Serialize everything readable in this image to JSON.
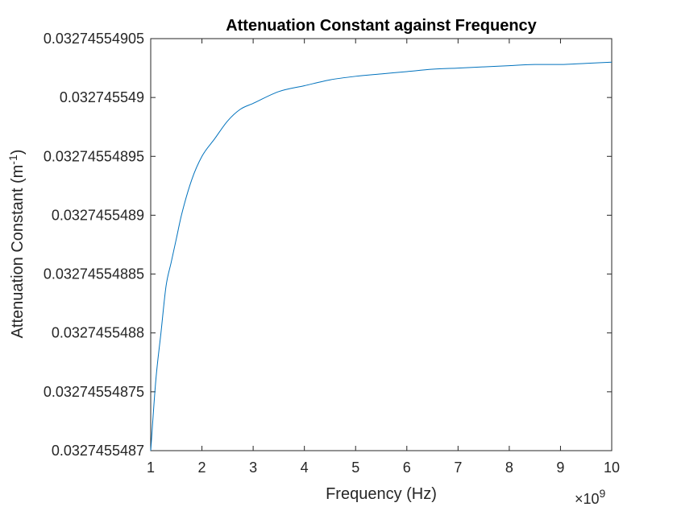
{
  "chart_data": {
    "type": "line",
    "title": "Attenuation Constant against Frequency",
    "xlabel": "Frequency (Hz)",
    "ylabel": "Attenuation Constant (m^-1)",
    "x_exponent_label": "×10",
    "x_exponent_power": "9",
    "xlim": [
      1000000000.0,
      10000000000.0
    ],
    "ylim": [
      0.0327455487,
      0.03274554905
    ],
    "x_ticks": [
      {
        "value": 1000000000.0,
        "label": "1"
      },
      {
        "value": 2000000000.0,
        "label": "2"
      },
      {
        "value": 3000000000.0,
        "label": "3"
      },
      {
        "value": 4000000000.0,
        "label": "4"
      },
      {
        "value": 5000000000.0,
        "label": "5"
      },
      {
        "value": 6000000000.0,
        "label": "6"
      },
      {
        "value": 7000000000.0,
        "label": "7"
      },
      {
        "value": 8000000000.0,
        "label": "8"
      },
      {
        "value": 9000000000.0,
        "label": "9"
      },
      {
        "value": 10000000000.0,
        "label": "10"
      }
    ],
    "y_ticks": [
      {
        "value": 0.0327455487,
        "label": "0.0327455487"
      },
      {
        "value": 0.03274554875,
        "label": "0.03274554875"
      },
      {
        "value": 0.0327455488,
        "label": "0.0327455488"
      },
      {
        "value": 0.03274554885,
        "label": "0.03274554885"
      },
      {
        "value": 0.0327455489,
        "label": "0.0327455489"
      },
      {
        "value": 0.03274554895,
        "label": "0.03274554895"
      },
      {
        "value": 0.032745549,
        "label": "0.032745549"
      },
      {
        "value": 0.03274554905,
        "label": "0.03274554905"
      }
    ],
    "grid": false,
    "line_color": "#0072bd",
    "series": [
      {
        "x": [
          1000000000.0,
          1100000000.0,
          1200000000.0,
          1300000000.0,
          1400000000.0,
          1500000000.0,
          1600000000.0,
          1800000000.0,
          2000000000.0,
          2250000000.0,
          2500000000.0,
          2750000000.0,
          3000000000.0,
          3500000000.0,
          4000000000.0,
          4500000000.0,
          5000000000.0,
          5500000000.0,
          6000000000.0,
          6500000000.0,
          7000000000.0,
          7500000000.0,
          8000000000.0,
          8500000000.0,
          9000000000.0,
          9500000000.0,
          10000000000.0
        ],
        "values": [
          0.0327455487,
          0.03274554876,
          0.0327455488,
          0.03274554884,
          0.03274554886,
          0.03274554888,
          0.0327455489,
          0.03274554893,
          0.03274554895,
          0.032745548965,
          0.03274554898,
          0.03274554899,
          0.032745548995,
          0.032745549005,
          0.03274554901,
          0.032745549015,
          0.032745549018,
          0.03274554902,
          0.032745549022,
          0.032745549024,
          0.032745549025,
          0.032745549026,
          0.032745549027,
          0.032745549028,
          0.032745549028,
          0.032745549029,
          0.03274554903
        ]
      }
    ]
  }
}
